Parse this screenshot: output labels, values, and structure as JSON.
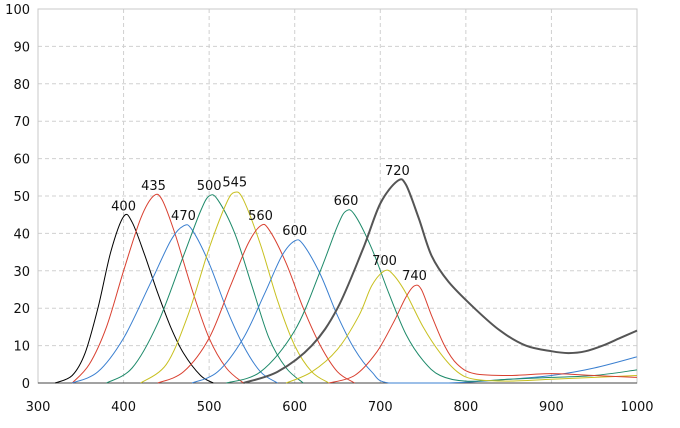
{
  "chart_data": {
    "type": "line",
    "title": "",
    "xlabel": "",
    "ylabel": "",
    "xlim": [
      300,
      1000
    ],
    "ylim": [
      0,
      100
    ],
    "xticks": [
      300,
      400,
      500,
      600,
      700,
      800,
      900,
      1000
    ],
    "yticks": [
      0,
      10,
      20,
      30,
      40,
      50,
      60,
      70,
      80,
      90,
      100
    ],
    "grid": true,
    "legend": "none",
    "series": [
      {
        "label": "400",
        "color": "#000000",
        "peak_x": 400,
        "peak_y": 44.5,
        "points": [
          [
            320,
            0
          ],
          [
            340,
            2
          ],
          [
            355,
            8
          ],
          [
            370,
            20
          ],
          [
            385,
            35
          ],
          [
            400,
            44.5
          ],
          [
            410,
            43
          ],
          [
            425,
            34
          ],
          [
            440,
            24
          ],
          [
            455,
            15
          ],
          [
            470,
            8
          ],
          [
            490,
            2
          ],
          [
            505,
            0
          ]
        ]
      },
      {
        "label": "435",
        "color": "#d94030",
        "peak_x": 435,
        "peak_y": 50,
        "points": [
          [
            340,
            0
          ],
          [
            360,
            5
          ],
          [
            380,
            15
          ],
          [
            400,
            30
          ],
          [
            420,
            44
          ],
          [
            435,
            50
          ],
          [
            445,
            49
          ],
          [
            460,
            40
          ],
          [
            480,
            25
          ],
          [
            500,
            12
          ],
          [
            520,
            4
          ],
          [
            540,
            0
          ]
        ]
      },
      {
        "label": "470",
        "color": "#3a7fd0",
        "peak_x": 470,
        "peak_y": 42,
        "points": [
          [
            340,
            0
          ],
          [
            370,
            3
          ],
          [
            400,
            12
          ],
          [
            430,
            26
          ],
          [
            455,
            38
          ],
          [
            470,
            42
          ],
          [
            480,
            41
          ],
          [
            500,
            32
          ],
          [
            520,
            20
          ],
          [
            540,
            10
          ],
          [
            560,
            3
          ],
          [
            580,
            0
          ]
        ]
      },
      {
        "label": "500",
        "color": "#1e8a6a",
        "peak_x": 500,
        "peak_y": 50,
        "points": [
          [
            380,
            0
          ],
          [
            410,
            4
          ],
          [
            440,
            16
          ],
          [
            470,
            34
          ],
          [
            490,
            46
          ],
          [
            500,
            50
          ],
          [
            510,
            49
          ],
          [
            530,
            40
          ],
          [
            550,
            26
          ],
          [
            570,
            12
          ],
          [
            590,
            4
          ],
          [
            610,
            0
          ]
        ]
      },
      {
        "label": "545",
        "color": "#c8c020",
        "peak_x": 530,
        "peak_y": 51,
        "points": [
          [
            420,
            0
          ],
          [
            450,
            5
          ],
          [
            475,
            18
          ],
          [
            500,
            36
          ],
          [
            520,
            48
          ],
          [
            530,
            51
          ],
          [
            540,
            49
          ],
          [
            560,
            37
          ],
          [
            580,
            22
          ],
          [
            600,
            10
          ],
          [
            620,
            3
          ],
          [
            640,
            0
          ]
        ]
      },
      {
        "label": "560",
        "color": "#d94030",
        "peak_x": 560,
        "peak_y": 42,
        "points": [
          [
            440,
            0
          ],
          [
            470,
            3
          ],
          [
            500,
            12
          ],
          [
            525,
            26
          ],
          [
            545,
            37
          ],
          [
            560,
            42
          ],
          [
            570,
            41
          ],
          [
            590,
            32
          ],
          [
            610,
            20
          ],
          [
            630,
            10
          ],
          [
            650,
            3
          ],
          [
            670,
            0
          ]
        ]
      },
      {
        "label": "600",
        "color": "#3a7fd0",
        "peak_x": 600,
        "peak_y": 38,
        "points": [
          [
            480,
            0
          ],
          [
            510,
            3
          ],
          [
            540,
            12
          ],
          [
            565,
            24
          ],
          [
            585,
            34
          ],
          [
            600,
            38
          ],
          [
            610,
            37
          ],
          [
            630,
            29
          ],
          [
            650,
            18
          ],
          [
            670,
            9
          ],
          [
            690,
            3
          ],
          [
            710,
            0
          ],
          [
            780,
            0
          ],
          [
            850,
            1
          ],
          [
            900,
            2
          ],
          [
            950,
            4
          ],
          [
            1000,
            7
          ]
        ]
      },
      {
        "label": "660",
        "color": "#1e8a6a",
        "peak_x": 660,
        "peak_y": 46,
        "points": [
          [
            520,
            0
          ],
          [
            560,
            3
          ],
          [
            600,
            14
          ],
          [
            630,
            30
          ],
          [
            650,
            42
          ],
          [
            660,
            46
          ],
          [
            670,
            45
          ],
          [
            690,
            36
          ],
          [
            710,
            24
          ],
          [
            730,
            13
          ],
          [
            750,
            6
          ],
          [
            770,
            2
          ],
          [
            800,
            0.5
          ],
          [
            850,
            1
          ],
          [
            900,
            1.5
          ],
          [
            950,
            2
          ],
          [
            1000,
            3.5
          ]
        ]
      },
      {
        "label": "700",
        "color": "#c8c020",
        "peak_x": 705,
        "peak_y": 30,
        "points": [
          [
            590,
            0
          ],
          [
            620,
            3
          ],
          [
            650,
            9
          ],
          [
            675,
            18
          ],
          [
            690,
            26
          ],
          [
            705,
            30
          ],
          [
            715,
            29
          ],
          [
            730,
            24
          ],
          [
            750,
            15
          ],
          [
            770,
            8
          ],
          [
            790,
            3
          ],
          [
            810,
            1
          ],
          [
            850,
            0.5
          ],
          [
            900,
            1
          ],
          [
            950,
            1.5
          ],
          [
            1000,
            2
          ]
        ]
      },
      {
        "label": "740",
        "color": "#d94030",
        "peak_x": 740,
        "peak_y": 26,
        "points": [
          [
            640,
            0
          ],
          [
            670,
            2
          ],
          [
            695,
            8
          ],
          [
            715,
            16
          ],
          [
            730,
            23
          ],
          [
            740,
            26
          ],
          [
            748,
            25
          ],
          [
            760,
            18
          ],
          [
            775,
            10
          ],
          [
            790,
            5
          ],
          [
            810,
            2.5
          ],
          [
            850,
            2
          ],
          [
            900,
            2.5
          ],
          [
            950,
            2
          ],
          [
            1000,
            1.5
          ]
        ]
      },
      {
        "label": "720",
        "color": "#555555",
        "peak_x": 720,
        "peak_y": 54,
        "points": [
          [
            540,
            0
          ],
          [
            580,
            3
          ],
          [
            620,
            10
          ],
          [
            650,
            20
          ],
          [
            680,
            36
          ],
          [
            700,
            48
          ],
          [
            720,
            54
          ],
          [
            730,
            53
          ],
          [
            745,
            44
          ],
          [
            760,
            34
          ],
          [
            780,
            27
          ],
          [
            810,
            20
          ],
          [
            840,
            14
          ],
          [
            870,
            10
          ],
          [
            900,
            8.5
          ],
          [
            920,
            8
          ],
          [
            940,
            8.5
          ],
          [
            960,
            10
          ],
          [
            980,
            12
          ],
          [
            1000,
            14
          ]
        ]
      }
    ]
  }
}
